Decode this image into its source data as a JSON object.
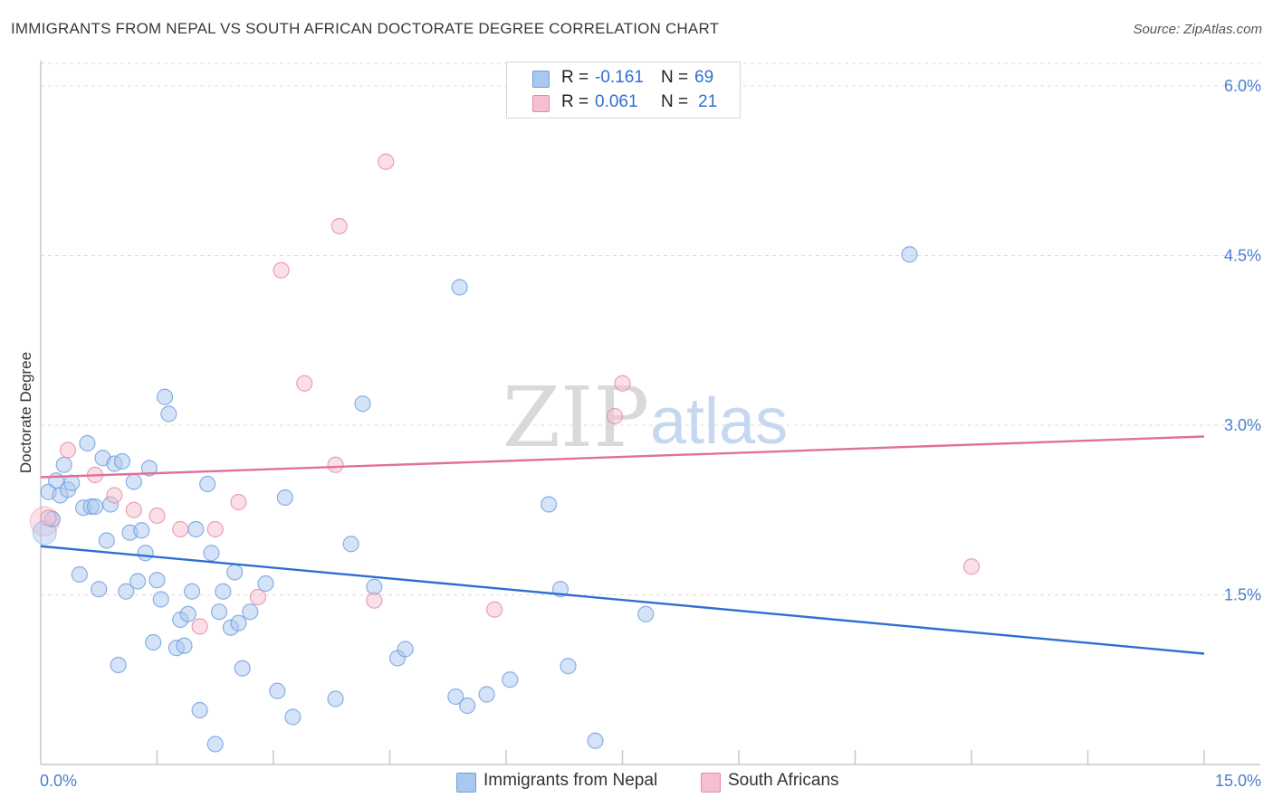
{
  "header": {
    "title": "IMMIGRANTS FROM NEPAL VS SOUTH AFRICAN DOCTORATE DEGREE CORRELATION CHART",
    "source": "Source: ZipAtlas.com"
  },
  "watermark": {
    "zip": "ZIP",
    "atlas": "atlas"
  },
  "legend": {
    "rows": [
      {
        "r_label": "R =",
        "r_value": "-0.161",
        "n_label": "N =",
        "n_value": "69",
        "color": "#a9c8f0",
        "border": "#6f9edb"
      },
      {
        "r_label": "R =",
        "r_value": "0.061",
        "n_label": "N =",
        "n_value": "21",
        "color": "#f6bfcf",
        "border": "#e58aa6"
      }
    ]
  },
  "bottom_legend": [
    {
      "label": "Immigrants from Nepal",
      "color": "#a9c8f0",
      "border": "#6f9edb"
    },
    {
      "label": "South Africans",
      "color": "#f6bfcf",
      "border": "#e58aa6"
    }
  ],
  "chart_data": {
    "type": "scatter",
    "title": "IMMIGRANTS FROM NEPAL VS SOUTH AFRICAN DOCTORATE DEGREE CORRELATION CHART",
    "xlabel": "",
    "ylabel": "Doctorate Degree",
    "xlim": [
      0,
      15
    ],
    "ylim": [
      0,
      6.2
    ],
    "x_tick_labels": [
      "0.0%",
      "15.0%"
    ],
    "y_ticks": [
      1.5,
      3.0,
      4.5,
      6.0
    ],
    "y_tick_labels": [
      "1.5%",
      "3.0%",
      "4.5%",
      "6.0%"
    ],
    "grid": true,
    "legend_position": "top-center",
    "series": [
      {
        "name": "Immigrants from Nepal",
        "color": "#6f9edb",
        "fill": "#a9c8f0",
        "line_color": "#2f6fd1",
        "trend": {
          "x": [
            0,
            15
          ],
          "y": [
            1.93,
            0.98
          ]
        },
        "points": [
          [
            0.1,
            2.41
          ],
          [
            0.15,
            2.17
          ],
          [
            0.2,
            2.51
          ],
          [
            0.25,
            2.38
          ],
          [
            0.3,
            2.65
          ],
          [
            0.35,
            2.43
          ],
          [
            0.4,
            2.49
          ],
          [
            0.5,
            1.68
          ],
          [
            0.55,
            2.27
          ],
          [
            0.6,
            2.84
          ],
          [
            0.65,
            2.28
          ],
          [
            0.7,
            2.28
          ],
          [
            0.75,
            1.55
          ],
          [
            0.8,
            2.71
          ],
          [
            0.85,
            1.98
          ],
          [
            0.9,
            2.3
          ],
          [
            0.95,
            2.66
          ],
          [
            1.0,
            0.88
          ],
          [
            1.05,
            2.68
          ],
          [
            1.1,
            1.53
          ],
          [
            1.15,
            2.05
          ],
          [
            1.2,
            2.5
          ],
          [
            1.25,
            1.62
          ],
          [
            1.3,
            2.07
          ],
          [
            1.35,
            1.87
          ],
          [
            1.4,
            2.62
          ],
          [
            1.45,
            1.08
          ],
          [
            1.5,
            1.63
          ],
          [
            1.55,
            1.46
          ],
          [
            1.6,
            3.25
          ],
          [
            1.65,
            3.1
          ],
          [
            1.75,
            1.03
          ],
          [
            1.8,
            1.28
          ],
          [
            1.85,
            1.05
          ],
          [
            1.9,
            1.33
          ],
          [
            1.95,
            1.53
          ],
          [
            2.0,
            2.08
          ],
          [
            2.05,
            0.48
          ],
          [
            2.15,
            2.48
          ],
          [
            2.2,
            1.87
          ],
          [
            2.25,
            0.18
          ],
          [
            2.3,
            1.35
          ],
          [
            2.35,
            1.53
          ],
          [
            2.45,
            1.21
          ],
          [
            2.5,
            1.7
          ],
          [
            2.55,
            1.25
          ],
          [
            2.6,
            0.85
          ],
          [
            2.7,
            1.35
          ],
          [
            2.9,
            1.6
          ],
          [
            3.05,
            0.65
          ],
          [
            3.15,
            2.36
          ],
          [
            3.25,
            0.42
          ],
          [
            3.8,
            0.58
          ],
          [
            4.0,
            1.95
          ],
          [
            4.15,
            3.19
          ],
          [
            4.3,
            1.57
          ],
          [
            4.6,
            0.94
          ],
          [
            4.7,
            1.02
          ],
          [
            5.35,
            0.6
          ],
          [
            5.4,
            4.22
          ],
          [
            5.5,
            0.52
          ],
          [
            5.75,
            0.62
          ],
          [
            6.05,
            0.75
          ],
          [
            6.55,
            2.3
          ],
          [
            6.7,
            1.55
          ],
          [
            6.8,
            0.87
          ],
          [
            7.15,
            0.21
          ],
          [
            7.8,
            1.33
          ],
          [
            11.2,
            4.51
          ]
        ]
      },
      {
        "name": "South Africans",
        "color": "#e58aa6",
        "fill": "#f6bfcf",
        "line_color": "#e0709a",
        "trend": {
          "x": [
            0,
            15
          ],
          "y": [
            2.54,
            2.9
          ]
        },
        "points": [
          [
            0.1,
            2.18
          ],
          [
            0.35,
            2.78
          ],
          [
            0.7,
            2.56
          ],
          [
            0.95,
            2.38
          ],
          [
            1.2,
            2.25
          ],
          [
            1.5,
            2.2
          ],
          [
            1.8,
            2.08
          ],
          [
            2.05,
            1.22
          ],
          [
            2.25,
            2.08
          ],
          [
            2.55,
            2.32
          ],
          [
            2.8,
            1.48
          ],
          [
            3.1,
            4.37
          ],
          [
            3.4,
            3.37
          ],
          [
            3.8,
            2.65
          ],
          [
            3.85,
            4.76
          ],
          [
            4.3,
            1.45
          ],
          [
            4.45,
            5.33
          ],
          [
            5.85,
            1.37
          ],
          [
            7.4,
            3.08
          ],
          [
            7.5,
            3.37
          ],
          [
            12.0,
            1.75
          ]
        ]
      }
    ]
  }
}
